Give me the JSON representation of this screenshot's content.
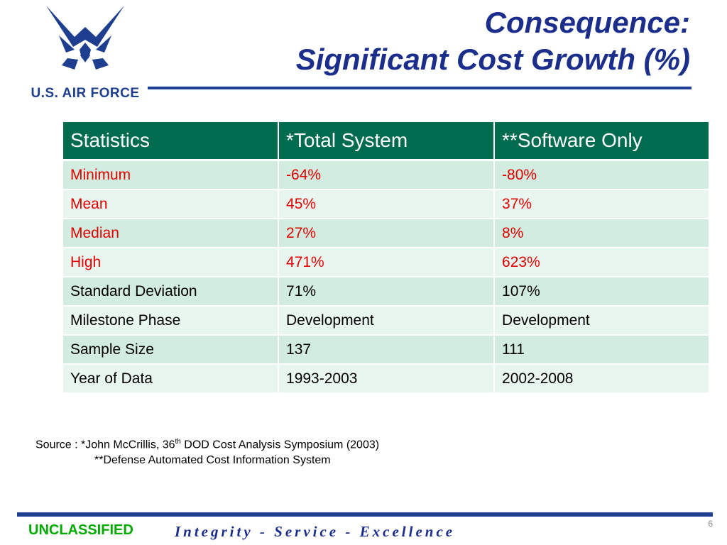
{
  "branding": {
    "logo_text": "U.S. AIR FORCE"
  },
  "title": {
    "line1": "Consequence:",
    "line2": "Significant Cost Growth (%)"
  },
  "table": {
    "headers": [
      "Statistics",
      "*Total System",
      "**Software Only"
    ],
    "rows": [
      {
        "label": "Minimum",
        "total": "-64%",
        "software": "-80%",
        "highlight": true
      },
      {
        "label": "Mean",
        "total": "45%",
        "software": "37%",
        "highlight": true
      },
      {
        "label": "Median",
        "total": "27%",
        "software": "8%",
        "highlight": true
      },
      {
        "label": "High",
        "total": "471%",
        "software": "623%",
        "highlight": true
      },
      {
        "label": "Standard Deviation",
        "total": "71%",
        "software": "107%",
        "highlight": false
      },
      {
        "label": "Milestone Phase",
        "total": "Development",
        "software": "Development",
        "highlight": false
      },
      {
        "label": "Sample Size",
        "total": "137",
        "software": "111",
        "highlight": false
      },
      {
        "label": "Year of Data",
        "total": "1993-2003",
        "software": "2002-2008",
        "highlight": false
      }
    ]
  },
  "source": {
    "line1_prefix": "Source : *John McCrillis, 36",
    "line1_sup": "th",
    "line1_suffix": " DOD Cost Analysis Symposium (2003)",
    "line2": "**Defense Automated Cost Information System"
  },
  "footer": {
    "classification": "UNCLASSIFIED",
    "motto": "Integrity - Service - Excellence",
    "page_number": "6"
  },
  "colors": {
    "brand_blue": "#1b2e8c",
    "header_green": "#006b4e",
    "highlight_red": "#e00000",
    "classification_green": "#00aa00"
  }
}
